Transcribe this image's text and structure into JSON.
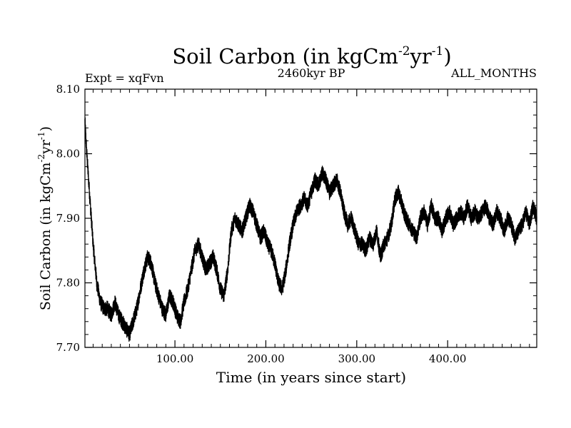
{
  "chart_data": {
    "type": "line",
    "title": "Soil Carbon (in kgCm",
    "title_sup1": "-2",
    "title_mid": "yr",
    "title_sup2": "-1",
    "title_end": ")",
    "subtitle_left": "Expt = xqFvn",
    "subtitle_center": "2460kyr BP",
    "subtitle_right": "ALL_MONTHS",
    "xlabel": "Time (in years since start)",
    "ylabel": "Soil Carbon (in kgCm",
    "ylabel_sup1": "-2",
    "ylabel_mid": "yr",
    "ylabel_sup2": "-1",
    "ylabel_end": ")",
    "xlim": [
      1,
      498
    ],
    "ylim": [
      7.7,
      8.1
    ],
    "x_ticks": [
      100,
      200,
      300,
      400
    ],
    "x_tick_labels": [
      "100.00",
      "200.00",
      "300.00",
      "400.00"
    ],
    "y_ticks": [
      7.7,
      7.8,
      7.9,
      8.0,
      8.1
    ],
    "y_tick_labels": [
      "7.70",
      "7.80",
      "7.90",
      "8.00",
      "8.10"
    ],
    "series": [
      {
        "name": "Soil Carbon",
        "color": "#000000",
        "noise": 0.012,
        "x": [
          1,
          3,
          6,
          10,
          14,
          18,
          22,
          26,
          30,
          34,
          38,
          42,
          46,
          50,
          54,
          58,
          62,
          66,
          70,
          74,
          78,
          82,
          86,
          90,
          94,
          98,
          102,
          106,
          110,
          114,
          118,
          122,
          126,
          130,
          134,
          138,
          142,
          146,
          150,
          154,
          158,
          162,
          166,
          170,
          174,
          178,
          182,
          186,
          190,
          194,
          198,
          202,
          206,
          210,
          214,
          218,
          222,
          226,
          230,
          234,
          238,
          242,
          246,
          250,
          254,
          258,
          262,
          266,
          270,
          274,
          278,
          282,
          286,
          290,
          294,
          298,
          302,
          306,
          310,
          314,
          318,
          322,
          326,
          330,
          334,
          338,
          342,
          346,
          350,
          354,
          358,
          362,
          366,
          370,
          374,
          378,
          382,
          386,
          390,
          394,
          398,
          402,
          406,
          410,
          414,
          418,
          422,
          426,
          430,
          434,
          438,
          442,
          446,
          450,
          454,
          458,
          462,
          466,
          470,
          474,
          478,
          482,
          486,
          490,
          494,
          498
        ],
        "values": [
          8.05,
          8.0,
          7.94,
          7.86,
          7.8,
          7.77,
          7.76,
          7.76,
          7.75,
          7.77,
          7.75,
          7.74,
          7.73,
          7.72,
          7.74,
          7.76,
          7.79,
          7.82,
          7.84,
          7.83,
          7.8,
          7.78,
          7.76,
          7.75,
          7.78,
          7.77,
          7.75,
          7.74,
          7.77,
          7.79,
          7.82,
          7.85,
          7.86,
          7.84,
          7.82,
          7.83,
          7.84,
          7.82,
          7.79,
          7.78,
          7.82,
          7.88,
          7.9,
          7.89,
          7.88,
          7.9,
          7.92,
          7.91,
          7.89,
          7.87,
          7.88,
          7.86,
          7.85,
          7.83,
          7.8,
          7.79,
          7.82,
          7.86,
          7.89,
          7.91,
          7.92,
          7.93,
          7.92,
          7.94,
          7.96,
          7.95,
          7.97,
          7.96,
          7.94,
          7.95,
          7.96,
          7.94,
          7.91,
          7.89,
          7.9,
          7.88,
          7.86,
          7.86,
          7.85,
          7.87,
          7.86,
          7.88,
          7.84,
          7.86,
          7.87,
          7.89,
          7.93,
          7.94,
          7.92,
          7.9,
          7.89,
          7.88,
          7.87,
          7.9,
          7.91,
          7.89,
          7.92,
          7.9,
          7.9,
          7.88,
          7.9,
          7.91,
          7.89,
          7.9,
          7.91,
          7.9,
          7.92,
          7.9,
          7.91,
          7.9,
          7.91,
          7.92,
          7.9,
          7.89,
          7.91,
          7.9,
          7.88,
          7.9,
          7.89,
          7.87,
          7.88,
          7.89,
          7.91,
          7.89,
          7.92,
          7.9
        ]
      }
    ]
  }
}
